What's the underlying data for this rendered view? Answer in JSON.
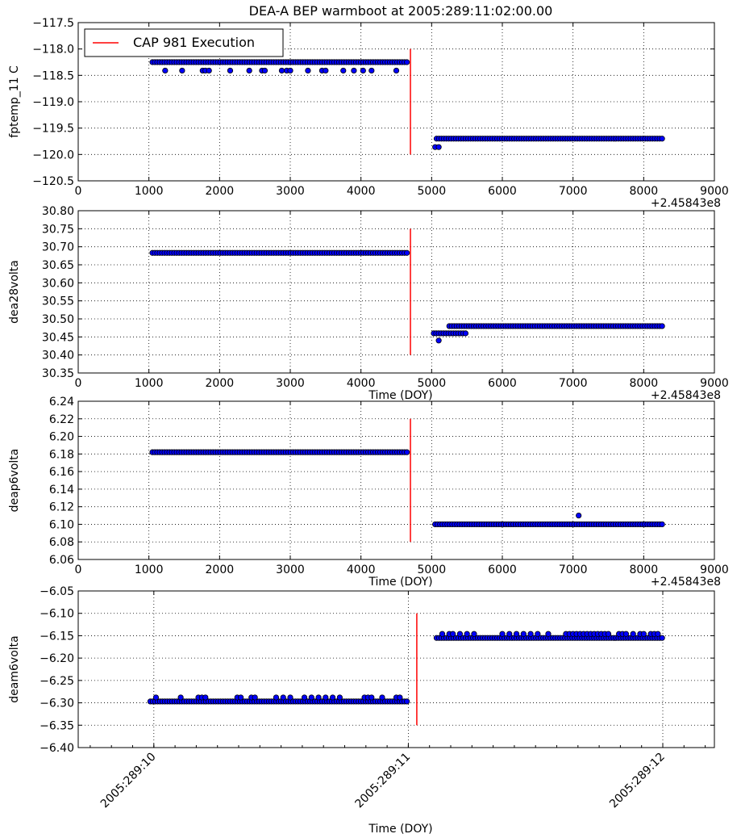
{
  "title": "DEA-A BEP warmboot at 2005:289:11:02:00.00",
  "legend": {
    "label": "CAP 981 Execution",
    "color": "#ff0000",
    "location": "upper-left"
  },
  "colors": {
    "marker_face": "#0000ff",
    "marker_edge": "#000000",
    "event_line": "#ff0000",
    "grid": "#000000"
  },
  "chart_data": [
    {
      "type": "scatter",
      "panel": 1,
      "ylabel": "fptemp_11 C",
      "xlabel": "",
      "x_offset_label": "+2.45843e8",
      "xlim": [
        0,
        9000
      ],
      "ylim": [
        -120.5,
        -117.5
      ],
      "xticks": [
        "0",
        "1000",
        "2000",
        "3000",
        "4000",
        "5000",
        "6000",
        "7000",
        "8000",
        "9000"
      ],
      "yticks": [
        "−117.5",
        "−118.0",
        "−118.5",
        "−119.0",
        "−119.5",
        "−120.0",
        "−120.5"
      ],
      "grid": true,
      "event_line": {
        "x": 4700,
        "y_range": [
          -120.0,
          -118.0
        ]
      },
      "series": [
        {
          "type": "dense",
          "x_start": 1050,
          "x_end": 4650,
          "y": -118.25
        },
        {
          "type": "points",
          "x": [
            1230,
            1470,
            1760,
            1800,
            1850,
            2150,
            2420,
            2600,
            2640,
            2880,
            2950,
            3000,
            3250,
            3450,
            3500,
            3750,
            3900,
            4030,
            4150,
            4500
          ],
          "y": -118.41
        },
        {
          "type": "dense",
          "x_start": 5070,
          "x_end": 8260,
          "y": -119.7
        },
        {
          "type": "points",
          "x": [
            5050,
            5100
          ],
          "y": -119.86
        }
      ]
    },
    {
      "type": "scatter",
      "panel": 2,
      "ylabel": "dea28volta",
      "xlabel": "Time (DOY)",
      "x_offset_label": "+2.45843e8",
      "xlim": [
        0,
        9000
      ],
      "ylim": [
        30.35,
        30.8
      ],
      "xticks": [
        "0",
        "1000",
        "2000",
        "3000",
        "4000",
        "5000",
        "6000",
        "7000",
        "8000",
        "9000"
      ],
      "yticks": [
        "30.80",
        "30.75",
        "30.70",
        "30.65",
        "30.60",
        "30.55",
        "30.50",
        "30.45",
        "30.40",
        "30.35"
      ],
      "grid": true,
      "event_line": {
        "x": 4700,
        "y_range": [
          30.4,
          30.75
        ]
      },
      "series": [
        {
          "type": "dense",
          "x_start": 1050,
          "x_end": 4650,
          "y": 30.683
        },
        {
          "type": "dense",
          "x_start": 5030,
          "x_end": 5480,
          "y": 30.46
        },
        {
          "type": "points",
          "x": [
            5100
          ],
          "y": 30.44
        },
        {
          "type": "dense",
          "x_start": 5250,
          "x_end": 8260,
          "y": 30.48
        }
      ]
    },
    {
      "type": "scatter",
      "panel": 3,
      "ylabel": "deap6volta",
      "xlabel": "Time (DOY)",
      "x_offset_label": "+2.45843e8",
      "xlim": [
        0,
        9000
      ],
      "ylim": [
        6.06,
        6.24
      ],
      "xticks": [
        "0",
        "1000",
        "2000",
        "3000",
        "4000",
        "5000",
        "6000",
        "7000",
        "8000",
        "9000"
      ],
      "yticks": [
        "6.24",
        "6.22",
        "6.20",
        "6.18",
        "6.16",
        "6.14",
        "6.12",
        "6.10",
        "6.08",
        "6.06"
      ],
      "grid": true,
      "event_line": {
        "x": 4700,
        "y_range": [
          6.08,
          6.22
        ]
      },
      "series": [
        {
          "type": "dense",
          "x_start": 1050,
          "x_end": 4650,
          "y": 6.182
        },
        {
          "type": "dense",
          "x_start": 5050,
          "x_end": 8260,
          "y": 6.1
        },
        {
          "type": "points",
          "x": [
            7080
          ],
          "y": 6.11
        }
      ]
    },
    {
      "type": "scatter",
      "panel": 4,
      "ylabel": "deam6volta",
      "xlabel": "Time (DOY)",
      "xlim": [
        0,
        9000
      ],
      "ylim": [
        -6.4,
        -6.05
      ],
      "xticks_dates": [
        "2005:289:10",
        "2005:289:11",
        "2005:289:12"
      ],
      "xtick_positions": [
        1070,
        4670,
        8270
      ],
      "yticks": [
        "−6.05",
        "−6.10",
        "−6.15",
        "−6.20",
        "−6.25",
        "−6.30",
        "−6.35",
        "−6.40"
      ],
      "grid": true,
      "event_line": {
        "x": 4790,
        "y_range": [
          -6.35,
          -6.1
        ]
      },
      "series": [
        {
          "type": "dense",
          "x_start": 1020,
          "x_end": 4650,
          "y": -6.297
        },
        {
          "type": "points",
          "x": [
            1100,
            1450,
            1700,
            1750,
            1800,
            2250,
            2300,
            2450,
            2500,
            2800,
            2900,
            3000,
            3200,
            3300,
            3400,
            3500,
            3600,
            3700,
            4050,
            4100,
            4150,
            4300,
            4500,
            4550
          ],
          "y": -6.288
        },
        {
          "type": "dense",
          "x_start": 5070,
          "x_end": 8260,
          "y": -6.155
        },
        {
          "type": "points",
          "x": [
            5150,
            5250,
            5300,
            5400,
            5500,
            5600,
            6000,
            6100,
            6200,
            6300,
            6400,
            6500,
            6650,
            6900,
            6950,
            7000,
            7050,
            7100,
            7150,
            7200,
            7250,
            7300,
            7350,
            7400,
            7450,
            7500,
            7650,
            7700,
            7750,
            7850,
            7950,
            8000,
            8100,
            8150,
            8200
          ],
          "y": -6.146
        }
      ]
    }
  ]
}
